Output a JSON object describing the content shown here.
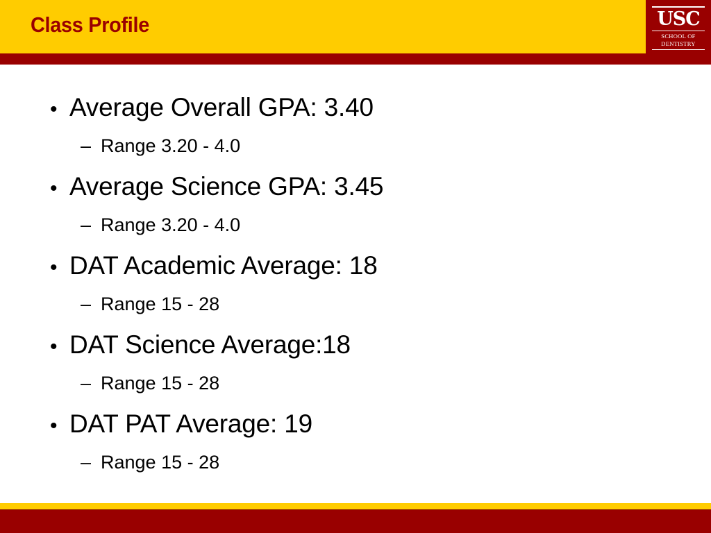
{
  "header": {
    "title": "Class Profile"
  },
  "logo": {
    "mark": "USC",
    "line1": "SCHOOL OF",
    "line2": "DENTISTRY"
  },
  "bullets": [
    {
      "text": "Average Overall GPA: 3.40",
      "sub": "Range 3.20 - 4.0"
    },
    {
      "text": "Average Science GPA: 3.45",
      "sub": "Range 3.20 - 4.0"
    },
    {
      "text": "DAT Academic Average: 18",
      "sub": "Range 15 - 28"
    },
    {
      "text": "DAT Science Average:18",
      "sub": "Range 15 - 28"
    },
    {
      "text": "DAT PAT Average: 19",
      "sub": "Range 15 - 28"
    }
  ],
  "glyphs": {
    "bullet": "•",
    "dash": "–"
  },
  "colors": {
    "gold": "#ffcc00",
    "cardinal": "#990000"
  }
}
